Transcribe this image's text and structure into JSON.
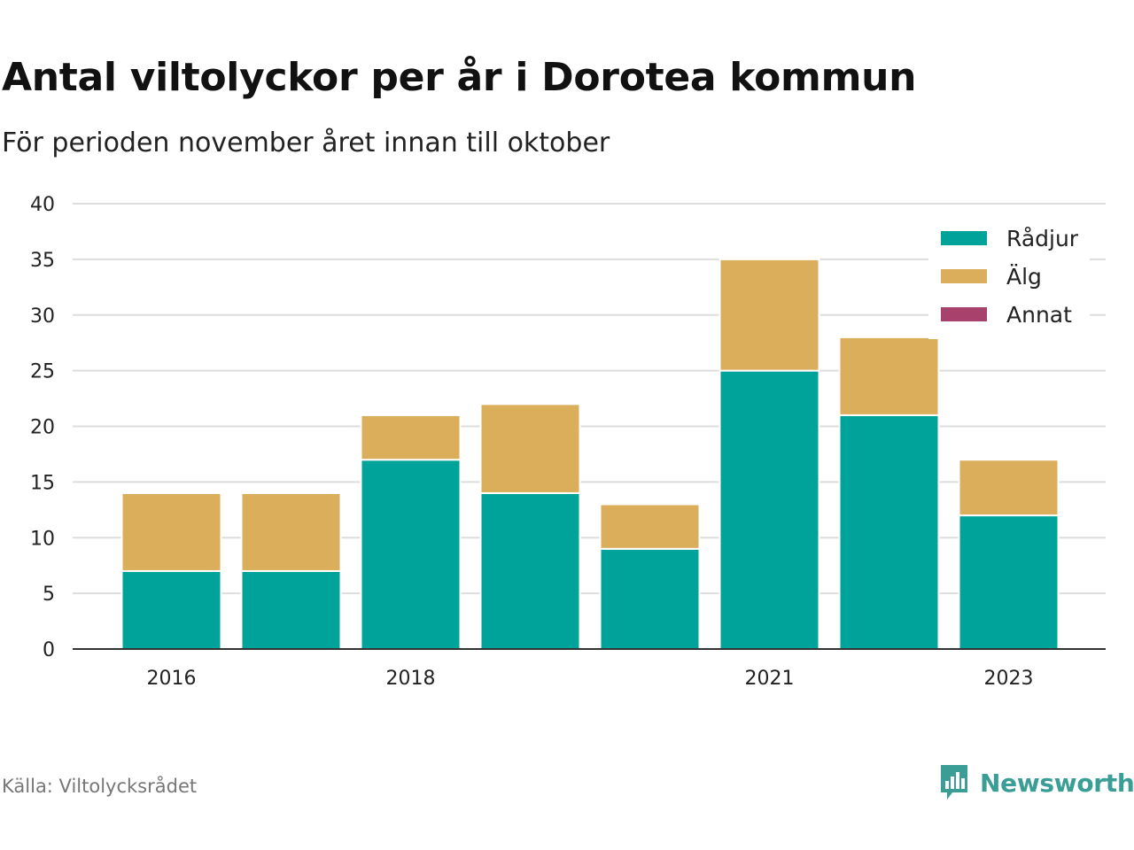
{
  "title": "Antal viltolyckor per år i Dorotea kommun",
  "subtitle": "För perioden november året innan till oktober",
  "source": "Källa: Viltolycksrådet",
  "brand": {
    "name": "Newsworthy",
    "icon": "newsworthy-logo-icon",
    "color": "#3a9e96"
  },
  "chart_data": {
    "type": "bar",
    "stacked": true,
    "categories": [
      "2016",
      "2017",
      "2018",
      "2019",
      "2020",
      "2021",
      "2022",
      "2023"
    ],
    "x_tick_labels": [
      "2016",
      "2018",
      "2021",
      "2023"
    ],
    "series": [
      {
        "name": "Rådjur",
        "color": "#00a39a",
        "values": [
          7,
          7,
          17,
          14,
          9,
          25,
          21,
          12
        ]
      },
      {
        "name": "Älg",
        "color": "#dbae5c",
        "values": [
          7,
          7,
          4,
          8,
          4,
          10,
          7,
          5
        ]
      },
      {
        "name": "Annat",
        "color": "#a8416b",
        "values": [
          0,
          0,
          0,
          0,
          0,
          0,
          0,
          0
        ]
      }
    ],
    "y_ticks": [
      0,
      5,
      10,
      15,
      20,
      25,
      30,
      35,
      40
    ],
    "ylim": [
      0,
      40
    ],
    "grid": true,
    "legend": "top-right"
  }
}
